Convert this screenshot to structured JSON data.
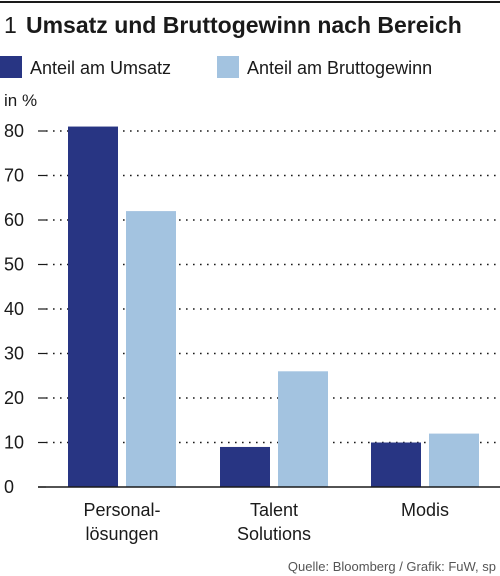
{
  "chart_data": {
    "type": "bar",
    "number": "1",
    "title": "Umsatz und Bruttogewinn nach Bereich",
    "unit": "in %",
    "categories": [
      [
        "Personal-",
        "lösungen"
      ],
      [
        "Talent",
        "Solutions"
      ],
      [
        "Modis"
      ]
    ],
    "series": [
      {
        "name": "Anteil am Umsatz",
        "color": "#283583",
        "values": [
          81,
          9,
          10
        ]
      },
      {
        "name": "Anteil am Bruttogewinn",
        "color": "#a3c3e0",
        "values": [
          62,
          26,
          12
        ]
      }
    ],
    "ylim": [
      0,
      80
    ],
    "yticks": [
      "0",
      "10",
      "20",
      "30",
      "40",
      "50",
      "60",
      "70",
      "80"
    ],
    "grid": true,
    "legend_position": "top",
    "source": "Quelle: Bloomberg / Grafik: FuW, sp"
  }
}
